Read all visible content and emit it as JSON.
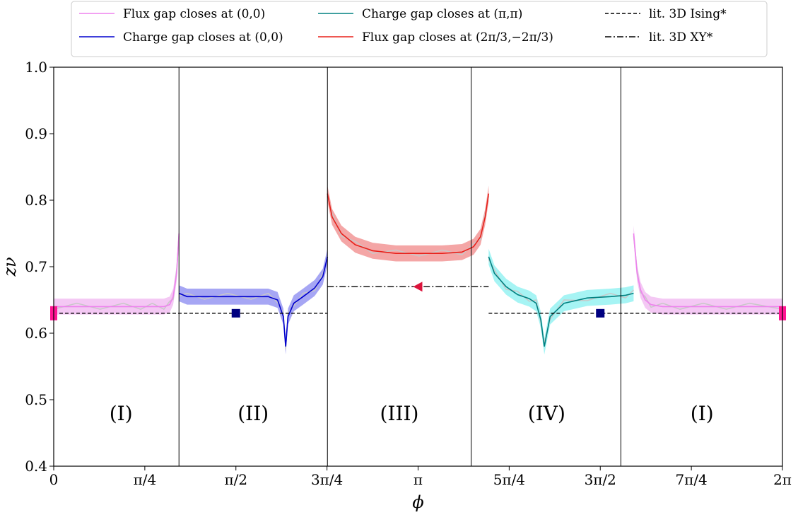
{
  "chart_data": {
    "type": "line",
    "xlabel": "ϕ",
    "ylabel": "zν",
    "xlim": [
      0,
      6.2832
    ],
    "ylim": [
      0.4,
      1.0
    ],
    "x_ticks": [
      {
        "value": 0,
        "label": "0"
      },
      {
        "value": 0.7854,
        "label": "π/4"
      },
      {
        "value": 1.5708,
        "label": "π/2"
      },
      {
        "value": 2.3562,
        "label": "3π/4"
      },
      {
        "value": 3.1416,
        "label": "π"
      },
      {
        "value": 3.927,
        "label": "5π/4"
      },
      {
        "value": 4.7124,
        "label": "3π/2"
      },
      {
        "value": 5.4978,
        "label": "7π/4"
      },
      {
        "value": 6.2832,
        "label": "2π"
      }
    ],
    "y_ticks": [
      {
        "value": 0.4,
        "label": "0.4"
      },
      {
        "value": 0.5,
        "label": "0.5"
      },
      {
        "value": 0.6,
        "label": "0.6"
      },
      {
        "value": 0.7,
        "label": "0.7"
      },
      {
        "value": 0.8,
        "label": "0.8"
      },
      {
        "value": 0.9,
        "label": "0.9"
      },
      {
        "value": 1.0,
        "label": "1.0"
      }
    ],
    "region_boundaries": [
      1.08,
      2.36,
      3.6,
      4.89
    ],
    "regions": [
      {
        "label": "(I)",
        "x": 0.58,
        "y": 0.48
      },
      {
        "label": "(II)",
        "x": 1.72,
        "y": 0.48
      },
      {
        "label": "(III)",
        "x": 2.98,
        "y": 0.48
      },
      {
        "label": "(IV)",
        "x": 4.25,
        "y": 0.48
      },
      {
        "label": "(I)",
        "x": 5.59,
        "y": 0.48
      }
    ],
    "legend": [
      {
        "label": "Flux gap closes at (0,0)",
        "color": "#ee82ee",
        "style": "solid"
      },
      {
        "label": "Charge gap closes at (0,0)",
        "color": "#0000cd",
        "style": "solid"
      },
      {
        "label": "Charge gap closes at (π,π)",
        "color": "#008080",
        "style": "solid"
      },
      {
        "label": "Flux gap closes at (2π/3,−2π/3)",
        "color": "#e8201a",
        "style": "solid"
      },
      {
        "label": "lit. 3D Ising*",
        "color": "#000000",
        "style": "dashed"
      },
      {
        "label": "lit. 3D XY*",
        "color": "#000000",
        "style": "dashdot"
      }
    ],
    "series": [
      {
        "name": "Flux gap closes at (0,0)",
        "color": "#ee82ee",
        "band": "#f0b0f0",
        "x": [
          0,
          0.2,
          0.4,
          0.6,
          0.75,
          0.85,
          0.95,
          1.0,
          1.03,
          1.06,
          1.08
        ],
        "y": [
          0.64,
          0.64,
          0.64,
          0.64,
          0.64,
          0.64,
          0.64,
          0.643,
          0.655,
          0.69,
          0.75
        ]
      },
      {
        "name": "Charge gap closes at (0,0)",
        "color": "#0000cd",
        "band": "#8080f0",
        "x": [
          1.08,
          1.15,
          1.3,
          1.5,
          1.7,
          1.85,
          1.93,
          1.98,
          2.0,
          2.02,
          2.07,
          2.15,
          2.25,
          2.32,
          2.36
        ],
        "y": [
          0.66,
          0.655,
          0.655,
          0.655,
          0.655,
          0.655,
          0.65,
          0.625,
          0.58,
          0.625,
          0.645,
          0.655,
          0.668,
          0.685,
          0.715
        ]
      },
      {
        "name": "Flux gap closes at (2π/3,−2π/3)",
        "color": "#e8201a",
        "band": "#f08080",
        "x": [
          2.36,
          2.4,
          2.48,
          2.6,
          2.75,
          2.95,
          3.15,
          3.35,
          3.52,
          3.62,
          3.68,
          3.72,
          3.75
        ],
        "y": [
          0.81,
          0.775,
          0.75,
          0.733,
          0.724,
          0.72,
          0.72,
          0.72,
          0.722,
          0.73,
          0.745,
          0.775,
          0.81
        ]
      },
      {
        "name": "Charge gap closes at (π,π)",
        "color": "#008080",
        "band": "#80f0f0",
        "x": [
          3.75,
          3.8,
          3.9,
          4.0,
          4.1,
          4.16,
          4.2,
          4.23,
          4.28,
          4.4,
          4.6,
          4.8,
          4.93,
          5.0
        ],
        "y": [
          0.715,
          0.69,
          0.67,
          0.658,
          0.652,
          0.645,
          0.62,
          0.58,
          0.625,
          0.645,
          0.653,
          0.655,
          0.657,
          0.66
        ]
      },
      {
        "name": "Flux gap closes at (0,0)",
        "color": "#ee82ee",
        "band": "#f0b0f0",
        "x": [
          5.0,
          5.03,
          5.06,
          5.1,
          5.15,
          5.25,
          5.4,
          5.6,
          5.8,
          6.0,
          6.2832
        ],
        "y": [
          0.75,
          0.69,
          0.665,
          0.65,
          0.643,
          0.64,
          0.64,
          0.64,
          0.64,
          0.64,
          0.64
        ]
      }
    ],
    "reference_lines": [
      {
        "name": "lit. 3D Ising*",
        "y": 0.63,
        "segments": [
          [
            0,
            2.36
          ],
          [
            3.75,
            6.2832
          ]
        ],
        "style": "dashed"
      },
      {
        "name": "lit. 3D XY*",
        "y": 0.67,
        "segments": [
          [
            2.36,
            3.75
          ]
        ],
        "style": "dashdot"
      }
    ],
    "markers": [
      {
        "shape": "square",
        "color": "#000080",
        "x": 1.5708,
        "y": 0.63
      },
      {
        "shape": "square",
        "color": "#000080",
        "x": 4.7124,
        "y": 0.63
      },
      {
        "shape": "triangle-left",
        "color": "#dc143c",
        "x": 3.1416,
        "y": 0.67
      },
      {
        "shape": "rect",
        "color": "#ff1493",
        "x": 0,
        "y": 0.63
      },
      {
        "shape": "rect",
        "color": "#ff1493",
        "x": 6.2832,
        "y": 0.63
      }
    ]
  }
}
